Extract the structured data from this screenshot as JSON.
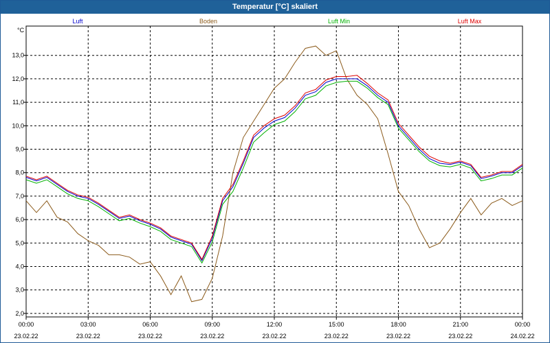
{
  "chart_data": {
    "type": "line",
    "title": "Temperatur [°C] skaliert",
    "ylabel": "°C",
    "xlabel": "",
    "ylim": [
      1.85,
      14.25
    ],
    "xlim": [
      0,
      24
    ],
    "grid": true,
    "yticks": [
      2.0,
      3.0,
      4.0,
      5.0,
      6.0,
      7.0,
      8.0,
      9.0,
      10.0,
      11.0,
      12.0,
      13.0
    ],
    "ytick_labels": [
      "2,0",
      "3,0",
      "4,0",
      "5,0",
      "6,0",
      "7,0",
      "8,0",
      "9,0",
      "10,0",
      "11,0",
      "12,0",
      "13,0"
    ],
    "xticks": [
      0,
      3,
      6,
      9,
      12,
      15,
      18,
      21,
      24
    ],
    "xtick_times": [
      "00:00",
      "03:00",
      "06:00",
      "09:00",
      "12:00",
      "15:00",
      "18:00",
      "21:00",
      "00:00"
    ],
    "xtick_dates": [
      "23.02.22",
      "23.02.22",
      "23.02.22",
      "23.02.22",
      "23.02.22",
      "23.02.22",
      "23.02.22",
      "23.02.22",
      "24.02.22"
    ],
    "series": [
      {
        "name": "Luft",
        "color": "#0000cc",
        "x": [
          0,
          0.5,
          1,
          1.5,
          2,
          2.5,
          3,
          3.5,
          4,
          4.5,
          5,
          5.5,
          6,
          6.5,
          7,
          7.5,
          8,
          8.5,
          9,
          9.5,
          10,
          10.5,
          11,
          11.5,
          12,
          12.5,
          13,
          13.5,
          14,
          14.5,
          15,
          15.5,
          16,
          16.5,
          17,
          17.5,
          18,
          18.5,
          19,
          19.5,
          20,
          20.5,
          21,
          21.5,
          22,
          22.5,
          23,
          23.5,
          24
        ],
        "values": [
          7.8,
          7.65,
          7.8,
          7.5,
          7.2,
          7.0,
          6.9,
          6.65,
          6.35,
          6.05,
          6.15,
          5.95,
          5.8,
          5.6,
          5.25,
          5.1,
          4.95,
          4.25,
          5.2,
          6.8,
          7.4,
          8.4,
          9.5,
          9.9,
          10.2,
          10.35,
          10.75,
          11.3,
          11.45,
          11.85,
          12.0,
          12.0,
          12.0,
          11.7,
          11.3,
          11.0,
          10.0,
          9.5,
          9.0,
          8.6,
          8.4,
          8.35,
          8.45,
          8.3,
          7.75,
          7.85,
          8.0,
          8.0,
          8.3
        ]
      },
      {
        "name": "Boden",
        "color": "#8b5a1a",
        "x": [
          0,
          0.5,
          1,
          1.5,
          2,
          2.5,
          3,
          3.5,
          4,
          4.5,
          5,
          5.5,
          6,
          6.5,
          7,
          7.5,
          8,
          8.5,
          9,
          9.5,
          10,
          10.5,
          11,
          11.5,
          12,
          12.5,
          13,
          13.5,
          14,
          14.5,
          15,
          15.5,
          16,
          16.5,
          17,
          17.5,
          18,
          18.5,
          19,
          19.5,
          20,
          20.5,
          21,
          21.5,
          22,
          22.5,
          23,
          23.5,
          24
        ],
        "values": [
          6.8,
          6.3,
          6.8,
          6.1,
          5.9,
          5.4,
          5.1,
          4.9,
          4.5,
          4.5,
          4.4,
          4.1,
          4.2,
          3.6,
          2.8,
          3.6,
          2.5,
          2.6,
          3.5,
          5.3,
          8.0,
          9.5,
          10.2,
          10.9,
          11.6,
          12.0,
          12.7,
          13.3,
          13.4,
          13.0,
          13.2,
          12.0,
          11.3,
          10.9,
          10.3,
          8.8,
          7.2,
          6.6,
          5.6,
          4.8,
          5.0,
          5.6,
          6.3,
          6.9,
          6.2,
          6.7,
          6.9,
          6.6,
          6.8
        ]
      },
      {
        "name": "Luft Min",
        "color": "#00b000",
        "x": [
          0,
          0.5,
          1,
          1.5,
          2,
          2.5,
          3,
          3.5,
          4,
          4.5,
          5,
          5.5,
          6,
          6.5,
          7,
          7.5,
          8,
          8.5,
          9,
          9.5,
          10,
          10.5,
          11,
          11.5,
          12,
          12.5,
          13,
          13.5,
          14,
          14.5,
          15,
          15.5,
          16,
          16.5,
          17,
          17.5,
          18,
          18.5,
          19,
          19.5,
          20,
          20.5,
          21,
          21.5,
          22,
          22.5,
          23,
          23.5,
          24
        ],
        "values": [
          7.7,
          7.55,
          7.7,
          7.4,
          7.1,
          6.9,
          6.8,
          6.55,
          6.25,
          5.95,
          6.05,
          5.85,
          5.7,
          5.5,
          5.15,
          5.0,
          4.85,
          4.15,
          5.05,
          6.65,
          7.2,
          8.2,
          9.3,
          9.7,
          10.05,
          10.2,
          10.6,
          11.15,
          11.3,
          11.7,
          11.85,
          11.9,
          11.9,
          11.6,
          11.2,
          10.9,
          9.9,
          9.4,
          8.9,
          8.5,
          8.3,
          8.25,
          8.35,
          8.2,
          7.65,
          7.75,
          7.9,
          7.9,
          8.2
        ]
      },
      {
        "name": "Luft Max",
        "color": "#dd0000",
        "x": [
          0,
          0.5,
          1,
          1.5,
          2,
          2.5,
          3,
          3.5,
          4,
          4.5,
          5,
          5.5,
          6,
          6.5,
          7,
          7.5,
          8,
          8.5,
          9,
          9.5,
          10,
          10.5,
          11,
          11.5,
          12,
          12.5,
          13,
          13.5,
          14,
          14.5,
          15,
          15.5,
          16,
          16.5,
          17,
          17.5,
          18,
          18.5,
          19,
          19.5,
          20,
          20.5,
          21,
          21.5,
          22,
          22.5,
          23,
          23.5,
          24
        ],
        "values": [
          7.85,
          7.7,
          7.85,
          7.55,
          7.25,
          7.05,
          6.95,
          6.7,
          6.4,
          6.1,
          6.2,
          6.0,
          5.85,
          5.65,
          5.3,
          5.15,
          5.0,
          4.3,
          5.3,
          6.9,
          7.5,
          8.5,
          9.6,
          10.0,
          10.3,
          10.45,
          10.85,
          11.4,
          11.55,
          11.95,
          12.1,
          12.1,
          12.15,
          11.8,
          11.4,
          11.1,
          10.1,
          9.6,
          9.1,
          8.7,
          8.5,
          8.4,
          8.5,
          8.35,
          7.8,
          7.9,
          8.05,
          8.05,
          8.35
        ]
      }
    ]
  }
}
